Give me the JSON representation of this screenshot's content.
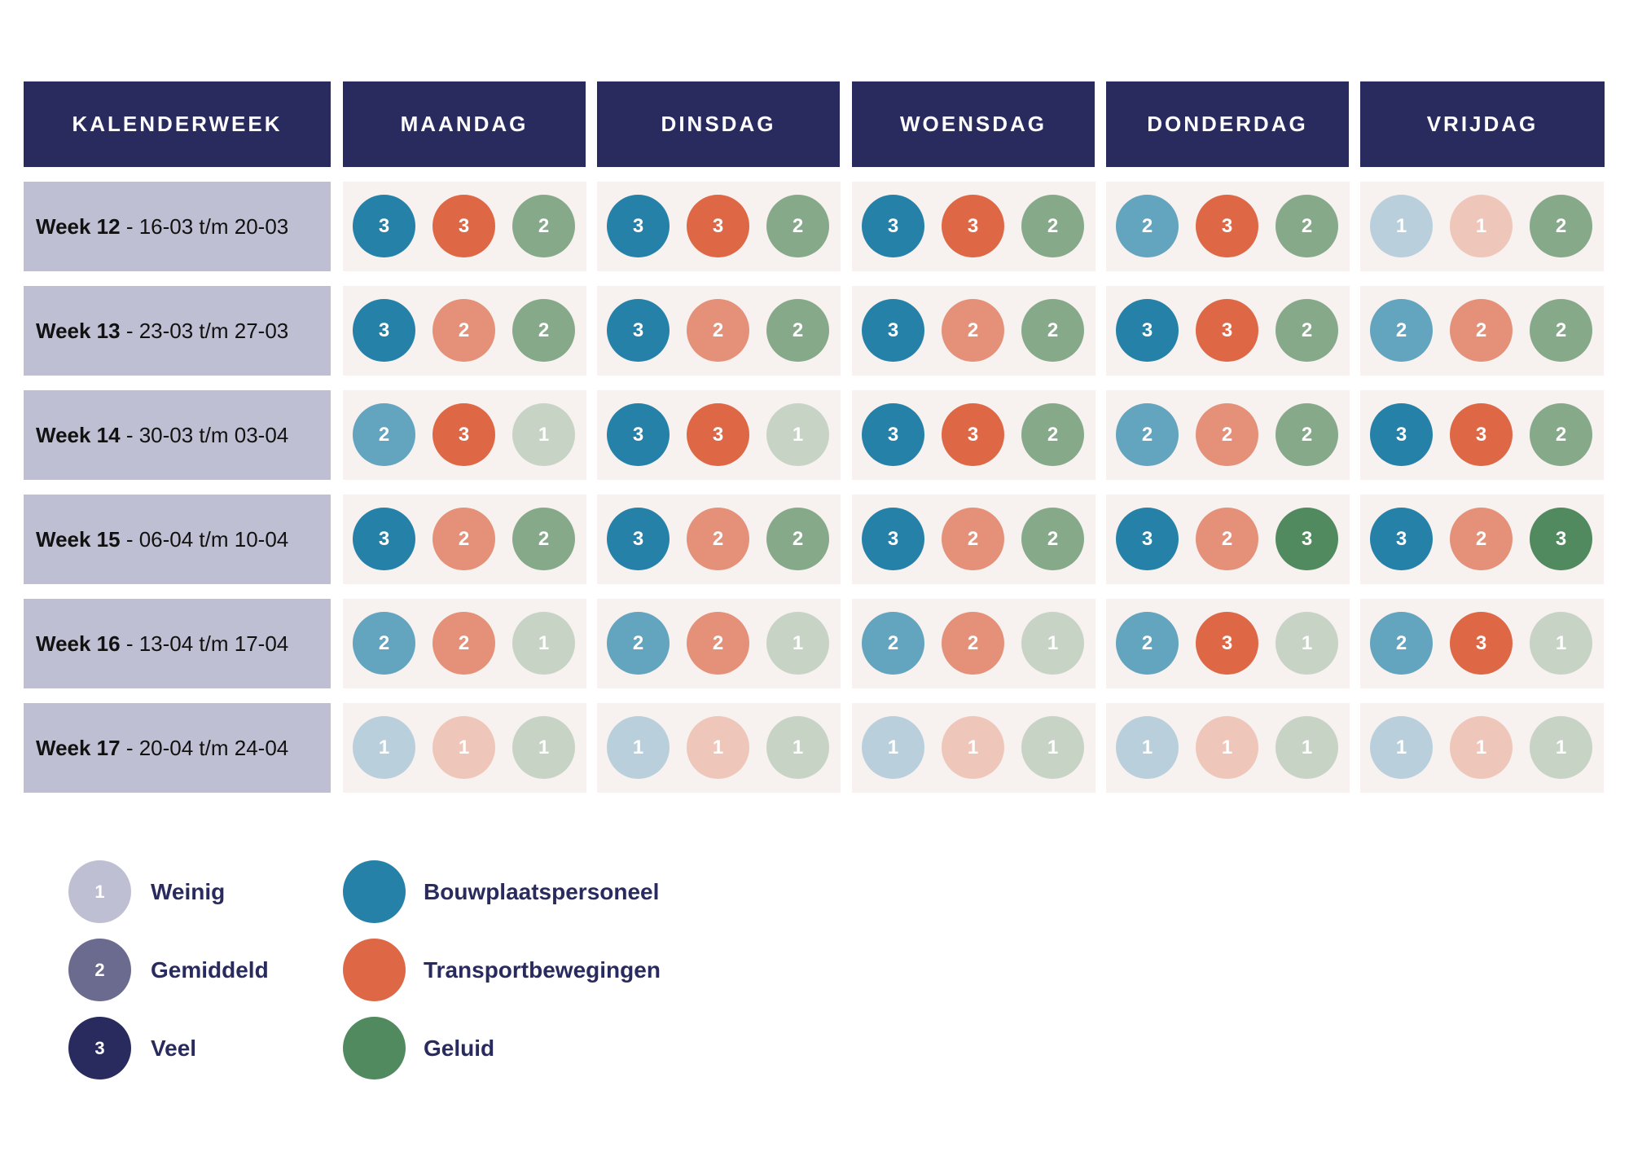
{
  "headers": [
    "KALENDERWEEK",
    "MAANDAG",
    "DINSDAG",
    "WOENSDAG",
    "DONDERDAG",
    "VRIJDAG"
  ],
  "colors": {
    "header_bg": "#292b5f",
    "week_bg": "#bebfd3",
    "cell_bg": "#f7f2ef",
    "bouw": {
      "1": "#b9d0dc",
      "2": "#63a4bf",
      "3": "#2581a8"
    },
    "transport": {
      "1": "#efc7ba",
      "2": "#e59079",
      "3": "#de6846"
    },
    "geluid": {
      "1": "#c7d3c5",
      "2": "#86a98a",
      "3": "#528a5f"
    },
    "level": {
      "1": "#bebfd3",
      "2": "#6a6b8f",
      "3": "#292b5f"
    }
  },
  "rows": [
    {
      "week": "Week 12",
      "range": " - 16-03 t/m 20-03",
      "days": [
        [
          3,
          3,
          2
        ],
        [
          3,
          3,
          2
        ],
        [
          3,
          3,
          2
        ],
        [
          2,
          3,
          2
        ],
        [
          1,
          1,
          2
        ]
      ]
    },
    {
      "week": "Week 13",
      "range": " - 23-03 t/m 27-03",
      "days": [
        [
          3,
          2,
          2
        ],
        [
          3,
          2,
          2
        ],
        [
          3,
          2,
          2
        ],
        [
          3,
          3,
          2
        ],
        [
          2,
          2,
          2
        ]
      ]
    },
    {
      "week": "Week 14",
      "range": " - 30-03 t/m 03-04",
      "days": [
        [
          2,
          3,
          1
        ],
        [
          3,
          3,
          1
        ],
        [
          3,
          3,
          2
        ],
        [
          2,
          2,
          2
        ],
        [
          3,
          3,
          2
        ]
      ]
    },
    {
      "week": "Week 15",
      "range": " - 06-04 t/m 10-04",
      "days": [
        [
          3,
          2,
          2
        ],
        [
          3,
          2,
          2
        ],
        [
          3,
          2,
          2
        ],
        [
          3,
          2,
          3
        ],
        [
          3,
          2,
          3
        ]
      ]
    },
    {
      "week": "Week 16",
      "range": " - 13-04 t/m 17-04",
      "days": [
        [
          2,
          2,
          1
        ],
        [
          2,
          2,
          1
        ],
        [
          2,
          2,
          1
        ],
        [
          2,
          3,
          1
        ],
        [
          2,
          3,
          1
        ]
      ]
    },
    {
      "week": "Week 17",
      "range": " - 20-04 t/m 24-04",
      "days": [
        [
          1,
          1,
          1
        ],
        [
          1,
          1,
          1
        ],
        [
          1,
          1,
          1
        ],
        [
          1,
          1,
          1
        ],
        [
          1,
          1,
          1
        ]
      ]
    }
  ],
  "legend": {
    "levels": [
      {
        "value": "1",
        "label": "Weinig"
      },
      {
        "value": "2",
        "label": "Gemiddeld"
      },
      {
        "value": "3",
        "label": "Veel"
      }
    ],
    "categories": [
      {
        "key": "bouw",
        "label": "Bouwplaatspersoneel"
      },
      {
        "key": "transport",
        "label": "Transportbewegingen"
      },
      {
        "key": "geluid",
        "label": "Geluid"
      }
    ]
  }
}
